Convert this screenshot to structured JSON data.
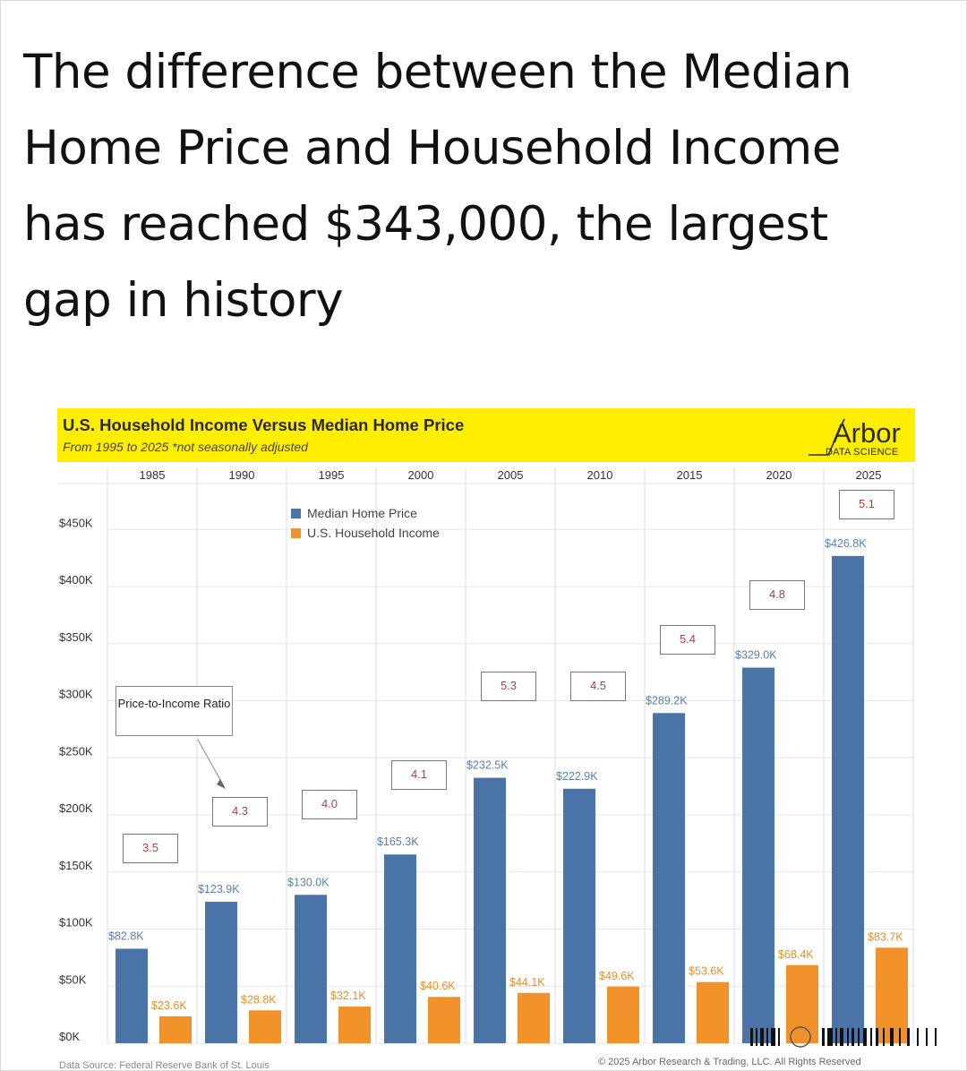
{
  "headline": "The difference between the Median Home Price and Household Income has reached $343,000, the largest gap in history",
  "chart_title": "U.S. Household Income Versus Median Home Price",
  "chart_subtitle": "From 1995 to 2025 *not seasonally adjusted",
  "logo": {
    "name": "Arbor",
    "subtitle": "DATA SCIENCE"
  },
  "annotation": "Price-to-Income Ratio",
  "source": "Data Source: Federal Reserve Bank of St. Louis",
  "copyright": "© 2025 Arbor Research & Trading, LLC. All Rights Reserved",
  "colors": {
    "home": "#4a73a8",
    "income": "#f0912a",
    "banner": "#ffee00",
    "label": "#b04040"
  },
  "chart_data": {
    "type": "bar",
    "title": "U.S. Household Income Versus Median Home Price",
    "subtitle": "From 1995 to 2025 *not seasonally adjusted",
    "categories": [
      "1985",
      "1990",
      "1995",
      "2000",
      "2005",
      "2010",
      "2015",
      "2020",
      "2025"
    ],
    "series": [
      {
        "name": "Median Home Price",
        "color": "#4a73a8",
        "values": [
          82.8,
          123.9,
          130.0,
          165.3,
          232.5,
          222.9,
          289.2,
          329.0,
          426.8
        ],
        "labels": [
          "$82.8K",
          "$123.9K",
          "$130.0K",
          "$165.3K",
          "$232.5K",
          "$222.9K",
          "$289.2K",
          "$329.0K",
          "$426.8K"
        ]
      },
      {
        "name": "U.S. Household Income",
        "color": "#f0912a",
        "values": [
          23.6,
          28.8,
          32.1,
          40.6,
          44.1,
          49.6,
          53.6,
          68.4,
          83.7
        ],
        "labels": [
          "$23.6K",
          "$28.8K",
          "$32.1K",
          "$40.6K",
          "$44.1K",
          "$49.6K",
          "$53.6K",
          "$68.4K",
          "$83.7K"
        ]
      }
    ],
    "price_to_income_ratio": [
      "3.5",
      "4.3",
      "4.0",
      "4.1",
      "5.3",
      "4.5",
      "5.4",
      "4.8",
      "5.1"
    ],
    "ylim": [
      0,
      490
    ],
    "yticks": [
      0,
      50,
      100,
      150,
      200,
      250,
      300,
      350,
      400,
      450
    ],
    "ytick_labels": [
      "$0K",
      "$50K",
      "$100K",
      "$150K",
      "$200K",
      "$250K",
      "$300K",
      "$350K",
      "$400K",
      "$450K"
    ],
    "legend": "top-center",
    "grid": true
  }
}
